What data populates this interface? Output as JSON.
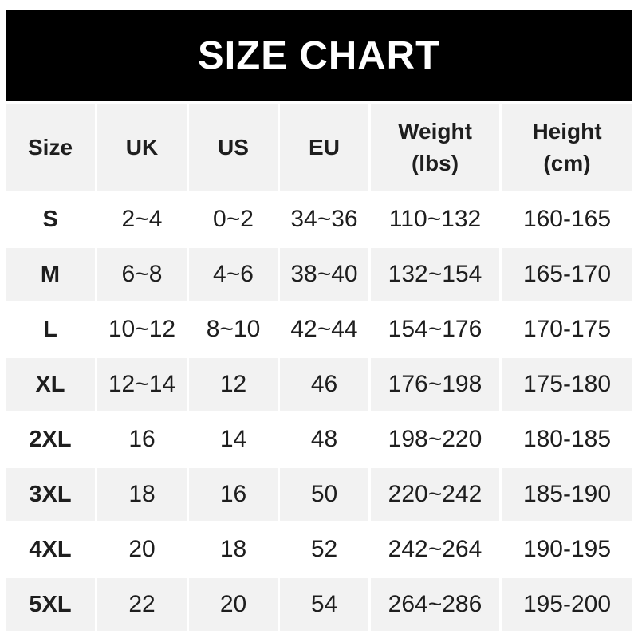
{
  "banner": {
    "title": "SIZE CHART"
  },
  "table": {
    "headers": [
      "Size",
      "UK",
      "US",
      "EU",
      "Weight\n(lbs)",
      "Height\n(cm)"
    ],
    "rows": [
      {
        "size": "S",
        "uk": "2~4",
        "us": "0~2",
        "eu": "34~36",
        "weight": "110~132",
        "height": "160-165"
      },
      {
        "size": "M",
        "uk": "6~8",
        "us": "4~6",
        "eu": "38~40",
        "weight": "132~154",
        "height": "165-170"
      },
      {
        "size": "L",
        "uk": "10~12",
        "us": "8~10",
        "eu": "42~44",
        "weight": "154~176",
        "height": "170-175"
      },
      {
        "size": "XL",
        "uk": "12~14",
        "us": "12",
        "eu": "46",
        "weight": "176~198",
        "height": "175-180"
      },
      {
        "size": "2XL",
        "uk": "16",
        "us": "14",
        "eu": "48",
        "weight": "198~220",
        "height": "180-185"
      },
      {
        "size": "3XL",
        "uk": "18",
        "us": "16",
        "eu": "50",
        "weight": "220~242",
        "height": "185-190"
      },
      {
        "size": "4XL",
        "uk": "20",
        "us": "18",
        "eu": "52",
        "weight": "242~264",
        "height": "190-195"
      },
      {
        "size": "5XL",
        "uk": "22",
        "us": "20",
        "eu": "54",
        "weight": "264~286",
        "height": "195-200"
      }
    ]
  },
  "colors": {
    "banner_bg": "#000000",
    "banner_text": "#ffffff",
    "cell_bg": "#f2f2f2",
    "row_alt_bg": "#ffffff",
    "text": "#1e1e1e"
  },
  "chart_data": {
    "type": "table",
    "title": "SIZE CHART",
    "columns": [
      "Size",
      "UK",
      "US",
      "EU",
      "Weight (lbs)",
      "Height (cm)"
    ],
    "rows": [
      [
        "S",
        "2~4",
        "0~2",
        "34~36",
        "110~132",
        "160-165"
      ],
      [
        "M",
        "6~8",
        "4~6",
        "38~40",
        "132~154",
        "165-170"
      ],
      [
        "L",
        "10~12",
        "8~10",
        "42~44",
        "154~176",
        "170-175"
      ],
      [
        "XL",
        "12~14",
        "12",
        "46",
        "176~198",
        "175-180"
      ],
      [
        "2XL",
        "16",
        "14",
        "48",
        "198~220",
        "180-185"
      ],
      [
        "3XL",
        "18",
        "16",
        "50",
        "220~242",
        "185-190"
      ],
      [
        "4XL",
        "20",
        "18",
        "52",
        "242~264",
        "190-195"
      ],
      [
        "5XL",
        "22",
        "20",
        "54",
        "264~286",
        "195-200"
      ]
    ],
    "layout": {
      "header_background": "#f2f2f2",
      "alternating_rows": true,
      "tilde_separator_columns": [
        "UK",
        "US",
        "EU",
        "Weight (lbs)"
      ],
      "hyphen_separator_columns": [
        "Height (cm)"
      ]
    }
  }
}
